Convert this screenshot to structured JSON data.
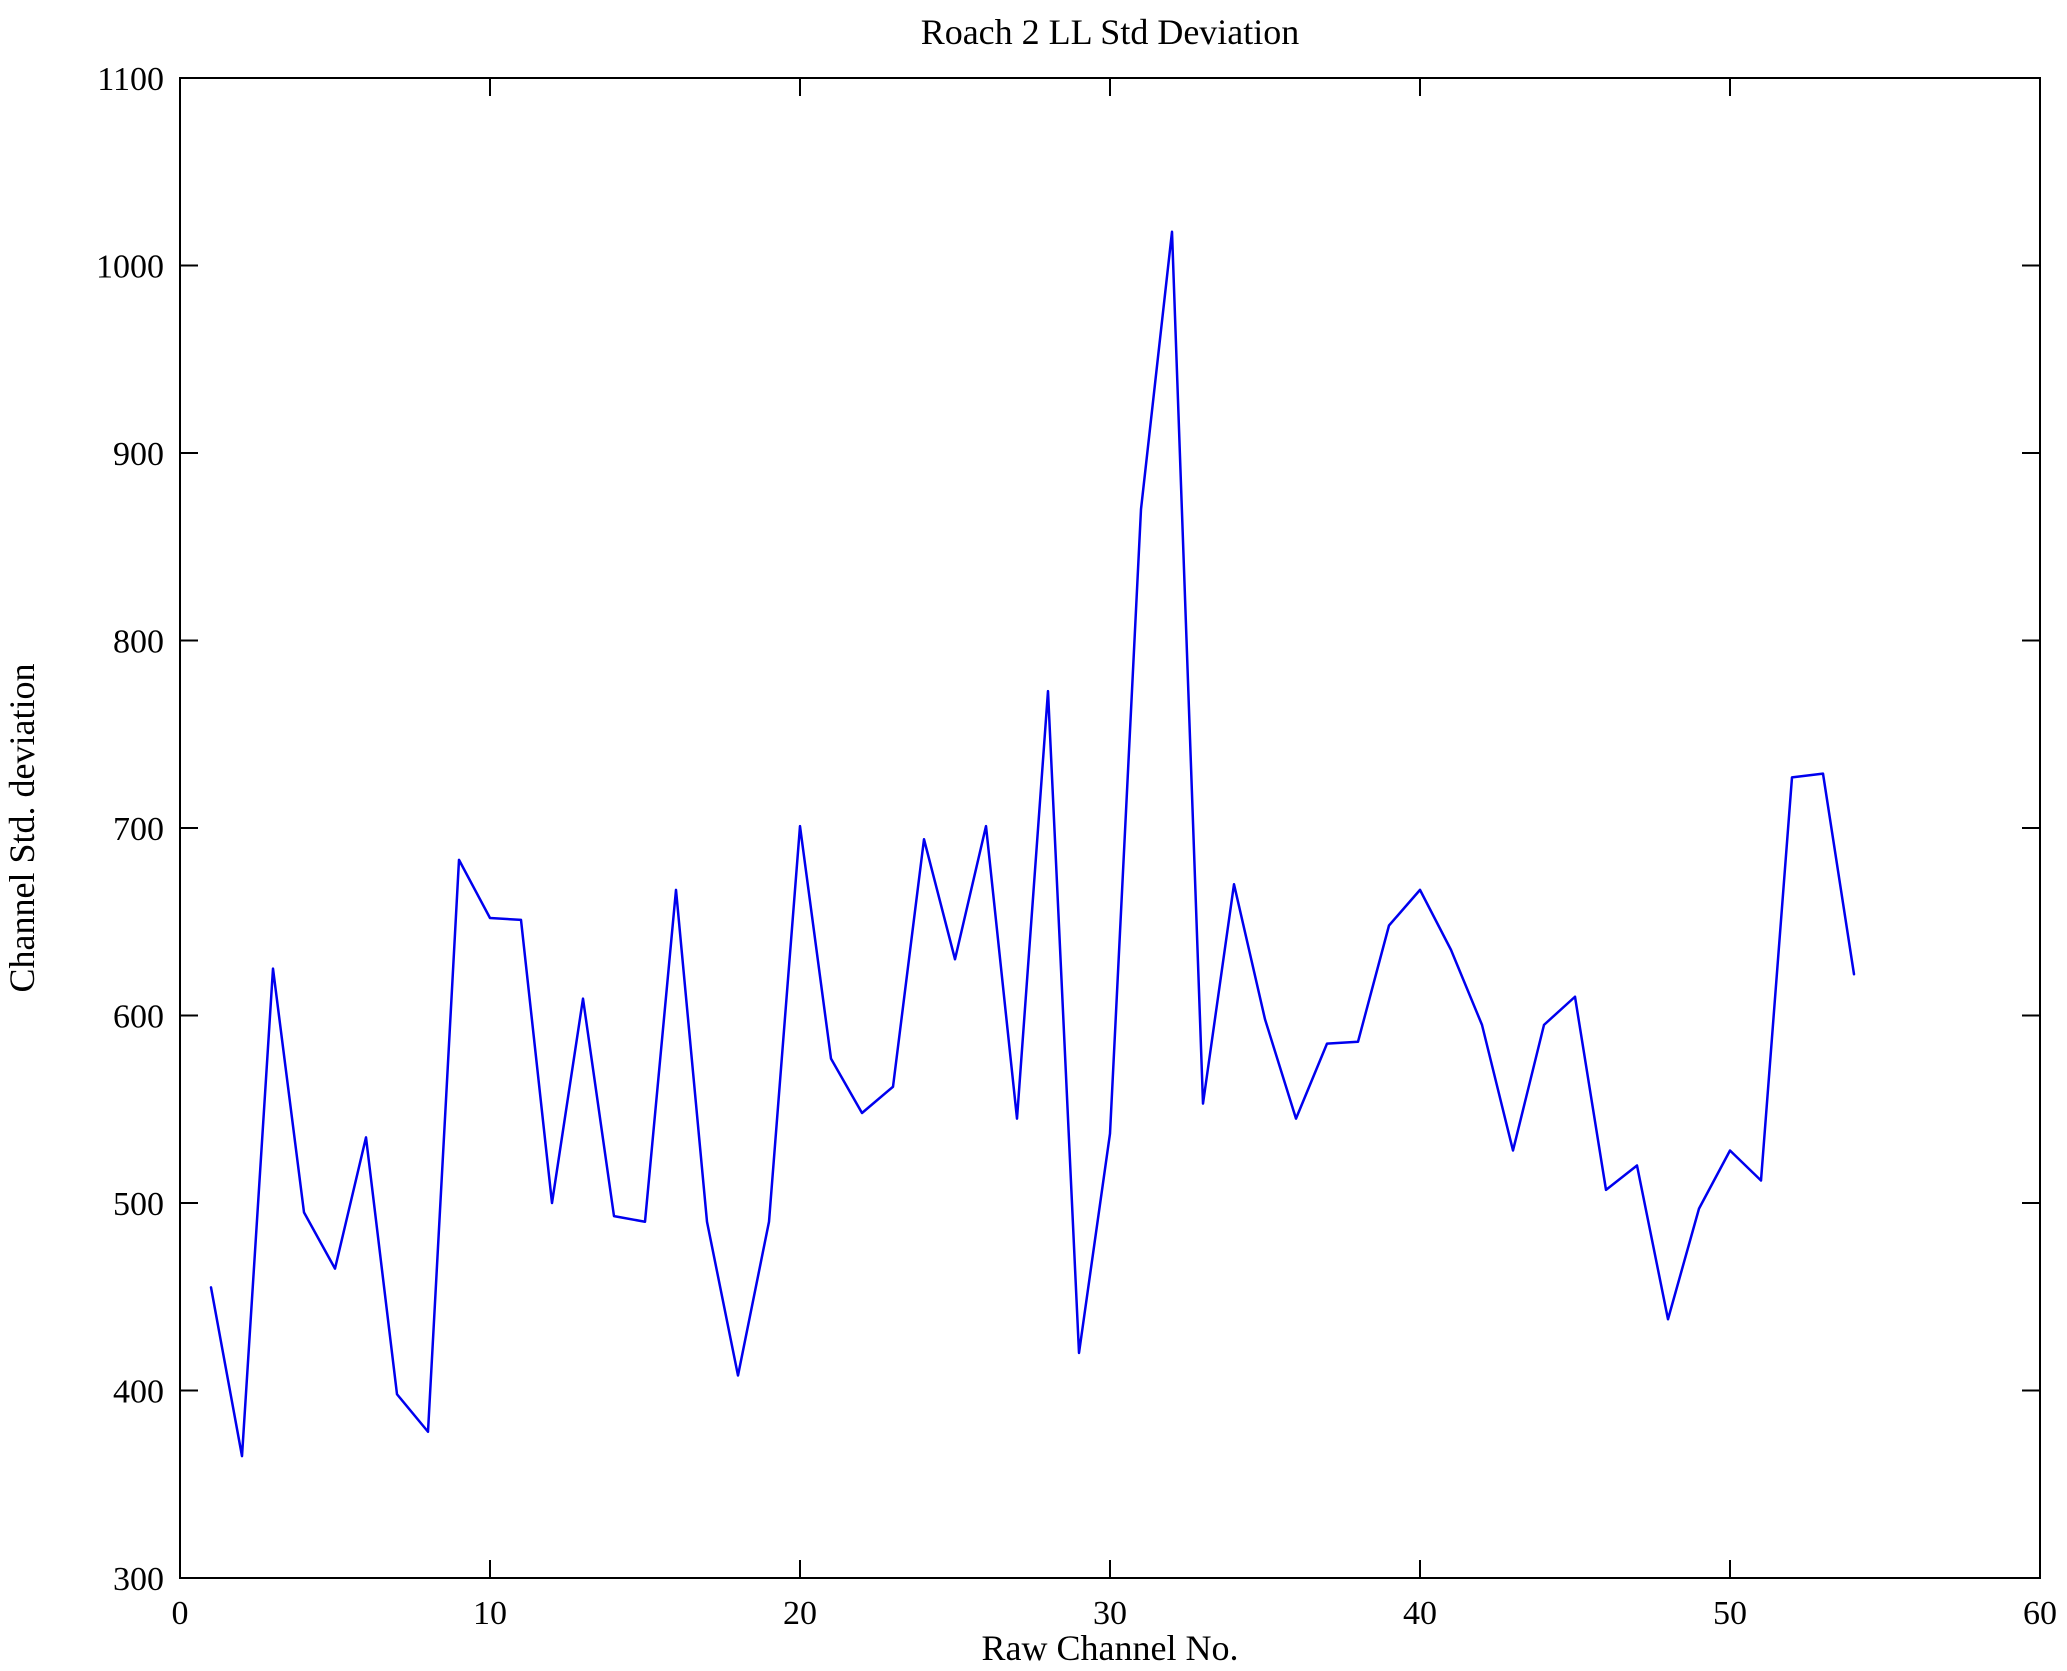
{
  "chart_data": {
    "type": "line",
    "title": "Roach 2 LL Std Deviation",
    "xlabel": "Raw Channel No.",
    "ylabel": "Channel Std. deviation",
    "xlim": [
      0,
      60
    ],
    "ylim": [
      300,
      1100
    ],
    "x_ticks": [
      0,
      10,
      20,
      30,
      40,
      50,
      60
    ],
    "y_ticks": [
      300,
      400,
      500,
      600,
      700,
      800,
      900,
      1000,
      1100
    ],
    "grid": false,
    "legend": "none",
    "line_color": "#0000EE",
    "series_name": "Channel Std. deviation",
    "x": [
      1,
      2,
      3,
      4,
      5,
      6,
      7,
      8,
      9,
      10,
      11,
      12,
      13,
      14,
      15,
      16,
      17,
      18,
      19,
      20,
      21,
      22,
      23,
      24,
      25,
      26,
      27,
      28,
      29,
      30,
      31,
      32,
      33,
      34,
      35,
      36,
      37,
      38,
      39,
      40,
      41,
      42,
      43,
      44,
      45,
      46,
      47,
      48,
      49,
      50,
      51,
      52,
      53,
      54
    ],
    "values": [
      455,
      365,
      625,
      495,
      465,
      535,
      398,
      378,
      683,
      652,
      651,
      500,
      609,
      493,
      490,
      667,
      490,
      408,
      490,
      701,
      577,
      548,
      562,
      694,
      630,
      701,
      545,
      773,
      420,
      537,
      870,
      1018,
      553,
      670,
      598,
      545,
      585,
      586,
      648,
      667,
      635,
      595,
      528,
      595,
      610,
      507,
      520,
      438,
      497,
      528,
      512,
      727,
      729,
      622
    ]
  }
}
